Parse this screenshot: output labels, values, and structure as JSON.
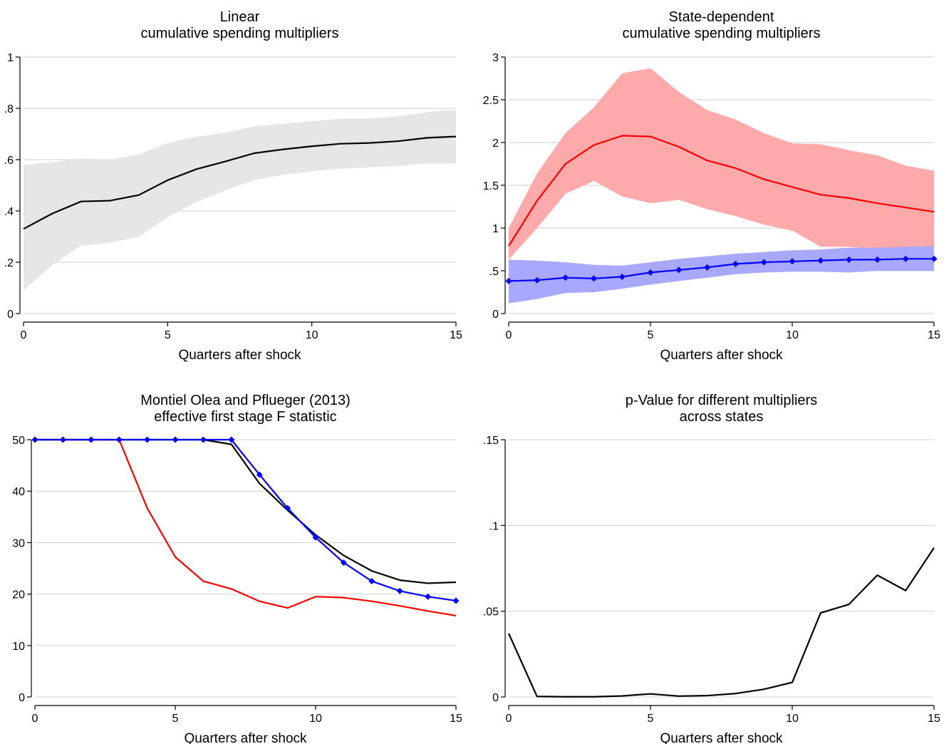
{
  "chart_data": [
    {
      "type": "line",
      "title_lines": [
        "Linear",
        "cumulative spending multipliers"
      ],
      "xlabel": "Quarters after shock",
      "xlim": [
        0,
        15
      ],
      "ylim": [
        0,
        1
      ],
      "xticks": [
        0,
        5,
        10,
        15
      ],
      "yticks": [
        0,
        0.2,
        0.4,
        0.6,
        0.8,
        1
      ],
      "ytick_labels": [
        "0",
        ".2",
        ".4",
        ".6",
        ".8",
        "1"
      ],
      "grid": true,
      "x": [
        0,
        1,
        2,
        3,
        4,
        5,
        6,
        7,
        8,
        9,
        10,
        11,
        12,
        13,
        14,
        15
      ],
      "bands": [
        {
          "color": "#e6e6e6",
          "lower": [
            0.09,
            0.19,
            0.265,
            0.275,
            0.3,
            0.375,
            0.435,
            0.48,
            0.52,
            0.54,
            0.555,
            0.565,
            0.57,
            0.575,
            0.585,
            0.585
          ],
          "upper": [
            0.58,
            0.59,
            0.605,
            0.6,
            0.62,
            0.665,
            0.69,
            0.705,
            0.73,
            0.74,
            0.75,
            0.76,
            0.76,
            0.77,
            0.785,
            0.795
          ]
        }
      ],
      "series": [
        {
          "color": "#000000",
          "markers": false,
          "values": [
            0.33,
            0.39,
            0.437,
            0.44,
            0.462,
            0.52,
            0.563,
            0.593,
            0.625,
            0.64,
            0.652,
            0.662,
            0.665,
            0.672,
            0.685,
            0.69
          ]
        }
      ]
    },
    {
      "type": "line",
      "title_lines": [
        "State-dependent",
        "cumulative spending multipliers"
      ],
      "xlabel": "Quarters after shock",
      "xlim": [
        0,
        15
      ],
      "ylim": [
        0,
        3
      ],
      "xticks": [
        0,
        5,
        10,
        15
      ],
      "yticks": [
        0,
        0.5,
        1,
        1.5,
        2,
        2.5,
        3
      ],
      "ytick_labels": [
        "0",
        ".5",
        "1",
        "1.5",
        "2",
        "2.5",
        "3"
      ],
      "grid": true,
      "x": [
        0,
        1,
        2,
        3,
        4,
        5,
        6,
        7,
        8,
        9,
        10,
        11,
        12,
        13,
        14,
        15
      ],
      "bands": [
        {
          "color": "#ffaaaa",
          "lower": [
            0.63,
            1.0,
            1.4,
            1.55,
            1.37,
            1.29,
            1.33,
            1.22,
            1.14,
            1.04,
            0.97,
            0.78,
            0.78,
            0.75,
            0.74,
            0.72
          ],
          "upper": [
            1.0,
            1.64,
            2.11,
            2.41,
            2.81,
            2.87,
            2.59,
            2.38,
            2.27,
            2.11,
            1.99,
            1.98,
            1.91,
            1.85,
            1.73,
            1.67
          ]
        },
        {
          "color": "#a8a8ff",
          "lower": [
            0.12,
            0.17,
            0.24,
            0.25,
            0.29,
            0.34,
            0.38,
            0.42,
            0.46,
            0.48,
            0.49,
            0.49,
            0.48,
            0.5,
            0.5,
            0.5
          ],
          "upper": [
            0.63,
            0.62,
            0.6,
            0.57,
            0.56,
            0.6,
            0.64,
            0.67,
            0.7,
            0.72,
            0.74,
            0.75,
            0.77,
            0.77,
            0.78,
            0.79
          ]
        }
      ],
      "series": [
        {
          "color": "#ff0000",
          "markers": false,
          "values": [
            0.79,
            1.32,
            1.75,
            1.97,
            2.08,
            2.07,
            1.95,
            1.79,
            1.7,
            1.57,
            1.48,
            1.39,
            1.35,
            1.29,
            1.24,
            1.19
          ]
        },
        {
          "color": "#0000ff",
          "markers": true,
          "values": [
            0.38,
            0.39,
            0.42,
            0.41,
            0.43,
            0.48,
            0.51,
            0.54,
            0.58,
            0.6,
            0.61,
            0.62,
            0.63,
            0.63,
            0.64,
            0.64
          ]
        }
      ]
    },
    {
      "type": "line",
      "title_lines": [
        "Montiel Olea and Pflueger (2013)",
        "effective first stage F statistic"
      ],
      "xlabel": "Quarters after shock",
      "xlim": [
        0,
        15
      ],
      "ylim": [
        0,
        50
      ],
      "xticks": [
        0,
        5,
        10,
        15
      ],
      "yticks": [
        0,
        10,
        20,
        30,
        40,
        50
      ],
      "ytick_labels": [
        "0",
        "10",
        "20",
        "30",
        "40",
        "50"
      ],
      "grid": true,
      "x": [
        0,
        1,
        2,
        3,
        4,
        5,
        6,
        7,
        8,
        9,
        10,
        11,
        12,
        13,
        14,
        15
      ],
      "bands": [],
      "series": [
        {
          "color": "#000000",
          "markers": false,
          "values": [
            50,
            50,
            50,
            50,
            50,
            50,
            50,
            49.1,
            41.5,
            36.3,
            31.5,
            27.5,
            24.5,
            22.7,
            22.1,
            22.3
          ]
        },
        {
          "color": "#ff0000",
          "markers": false,
          "values": [
            50,
            50,
            50,
            50,
            36.7,
            27.2,
            22.5,
            21,
            18.6,
            17.3,
            19.5,
            19.3,
            18.6,
            17.7,
            16.7,
            15.8
          ]
        },
        {
          "color": "#0000ff",
          "markers": true,
          "values": [
            50,
            50,
            50,
            50,
            50,
            50,
            50,
            50,
            43.2,
            36.7,
            31,
            26.1,
            22.5,
            20.6,
            19.5,
            18.7
          ]
        }
      ]
    },
    {
      "type": "line",
      "title_lines": [
        "p-Value for different multipliers",
        "across states"
      ],
      "xlabel": "Quarters after shock",
      "xlim": [
        0,
        15
      ],
      "ylim": [
        0,
        0.15
      ],
      "xticks": [
        0,
        5,
        10,
        15
      ],
      "yticks": [
        0,
        0.05,
        0.1,
        0.15
      ],
      "ytick_labels": [
        "0",
        ".05",
        ".1",
        ".15"
      ],
      "grid": true,
      "x": [
        0,
        1,
        2,
        3,
        4,
        5,
        6,
        7,
        8,
        9,
        10,
        11,
        12,
        13,
        14,
        15
      ],
      "bands": [],
      "series": [
        {
          "color": "#000000",
          "markers": false,
          "values": [
            0.037,
            0.0003,
            0.0001,
            0.0001,
            0.0006,
            0.0018,
            0.0005,
            0.0008,
            0.002,
            0.0045,
            0.0085,
            0.049,
            0.054,
            0.071,
            0.062,
            0.087
          ]
        }
      ]
    }
  ]
}
